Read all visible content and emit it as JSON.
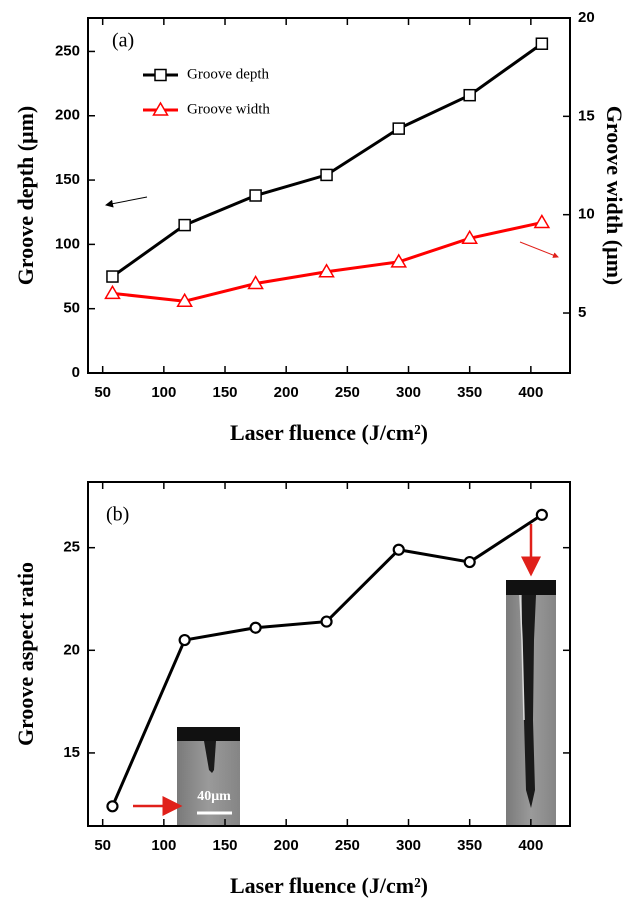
{
  "chart_data": [
    {
      "type": "line",
      "annotations": [
        "(a)"
      ],
      "xlabel": "Laser fluence (J/cm²)",
      "ylabel": "Groove depth (μm)",
      "y2label": "Groove width (μm)",
      "x": [
        58,
        117,
        175,
        233,
        292,
        350,
        409
      ],
      "series": [
        {
          "name": "Groove depth",
          "color": "#000000",
          "marker": "square",
          "values": [
            75,
            115,
            138,
            154,
            190,
            216,
            256
          ]
        },
        {
          "name": "Groove width",
          "color": "#ff0000",
          "marker": "triangle",
          "axis": "y2",
          "values": [
            6.0,
            5.6,
            6.5,
            7.1,
            7.6,
            8.8,
            9.6
          ]
        }
      ],
      "xlim": [
        38,
        432
      ],
      "xticks": [
        50,
        100,
        150,
        200,
        250,
        300,
        350,
        400
      ],
      "ylim": [
        0,
        276
      ],
      "yticks": [
        0,
        50,
        100,
        150,
        200,
        250
      ],
      "y2lim": [
        1.95,
        20
      ],
      "y2ticks": [
        5,
        10,
        15,
        20
      ]
    },
    {
      "type": "line",
      "annotations": [
        "(b)",
        "40μm"
      ],
      "xlabel": "Laser fluence (J/cm²)",
      "ylabel": "Groove aspect ratio",
      "x": [
        58,
        117,
        175,
        233,
        292,
        350,
        409
      ],
      "series": [
        {
          "name": "Groove aspect ratio",
          "color": "#000000",
          "marker": "circle",
          "values": [
            12.4,
            20.5,
            21.1,
            21.4,
            24.9,
            24.3,
            26.6
          ]
        }
      ],
      "xlim": [
        38,
        432
      ],
      "xticks": [
        50,
        100,
        150,
        200,
        250,
        300,
        350,
        400
      ],
      "ylim": [
        11.44,
        28.2
      ],
      "yticks": [
        15,
        20,
        25
      ]
    }
  ]
}
